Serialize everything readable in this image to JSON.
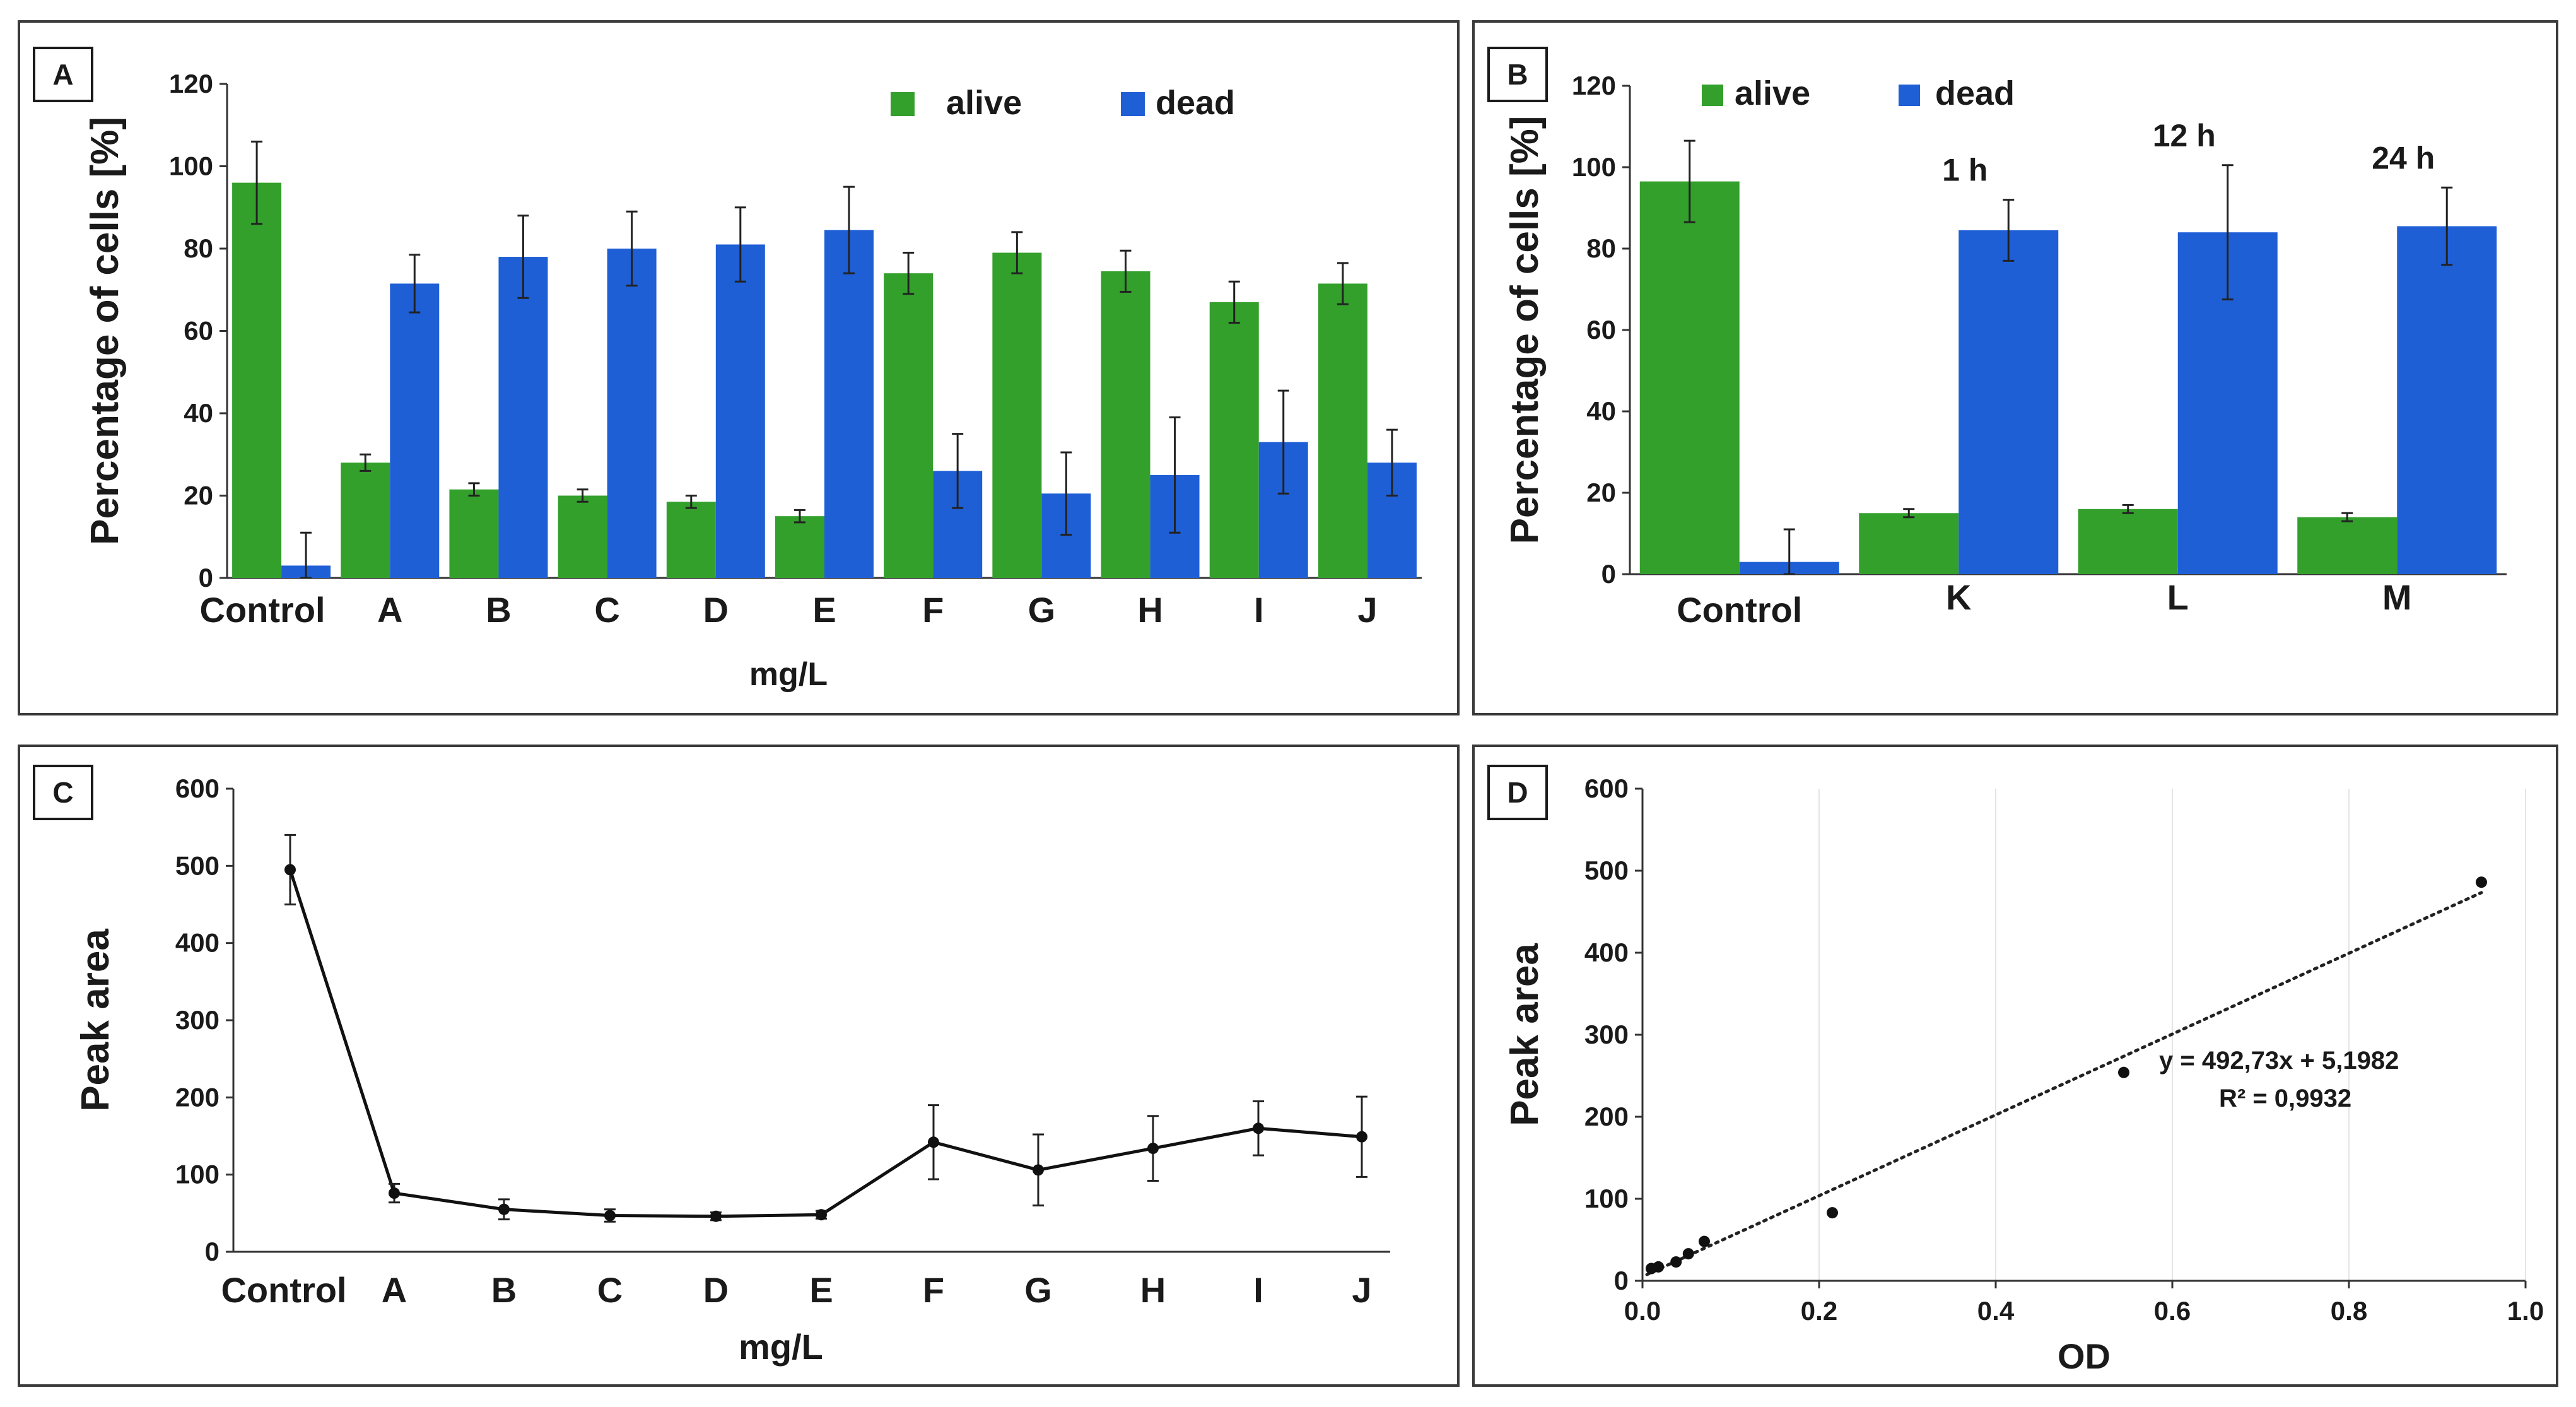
{
  "colors": {
    "alive": "#33a02c",
    "dead": "#1f5fd6",
    "line": "#111111"
  },
  "panels": [
    {
      "id": "A",
      "label": "A",
      "legend": [
        "alive",
        "dead"
      ],
      "xlabel": "mg/L",
      "ylabel": "Percentage of cells  [%]",
      "yticks": [
        "0",
        "20",
        "40",
        "60",
        "80",
        "100",
        "120"
      ]
    },
    {
      "id": "B",
      "label": "B",
      "legend": [
        "alive",
        "dead"
      ],
      "xlabel": "",
      "ylabel": "Percentage of cells [%]",
      "yticks": [
        "0",
        "20",
        "40",
        "60",
        "80",
        "100",
        "120"
      ],
      "annotations": [
        "1 h",
        "12 h",
        "24 h"
      ]
    },
    {
      "id": "C",
      "label": "C",
      "xlabel": "mg/L",
      "ylabel": "Peak area",
      "yticks": [
        "0",
        "100",
        "200",
        "300",
        "400",
        "500",
        "600"
      ]
    },
    {
      "id": "D",
      "label": "D",
      "xlabel": "OD",
      "ylabel": "Peak area",
      "yticks": [
        "0",
        "100",
        "200",
        "300",
        "400",
        "500",
        "600"
      ],
      "xticks": [
        "0.0",
        "0.2",
        "0.4",
        "0.6",
        "0.8",
        "1.0"
      ],
      "equation": "y = 492,73x + 5,1982",
      "r2": "R² = 0,9932"
    }
  ],
  "chart_data": [
    {
      "panel": "A",
      "type": "bar",
      "categories": [
        "Control",
        "A",
        "B",
        "C",
        "D",
        "E",
        "F",
        "G",
        "H",
        "I",
        "J"
      ],
      "series": [
        {
          "name": "alive",
          "values": [
            96,
            28,
            21.5,
            20,
            18.5,
            15,
            74,
            79,
            74.5,
            67,
            71.5
          ],
          "errors": [
            10,
            2,
            1.5,
            1.5,
            1.5,
            1.5,
            5,
            5,
            5,
            5,
            5
          ]
        },
        {
          "name": "dead",
          "values": [
            3,
            71.5,
            78,
            80,
            81,
            84.5,
            26,
            20.5,
            25,
            33,
            28
          ],
          "errors": [
            8,
            7,
            10,
            9,
            9,
            10.5,
            9,
            10,
            14,
            12.5,
            8
          ]
        }
      ],
      "xlabel": "mg/L",
      "ylabel": "Percentage of cells  [%]",
      "ylim": [
        0,
        120
      ],
      "legend": "top-right"
    },
    {
      "panel": "B",
      "type": "bar",
      "categories": [
        "Control",
        "K",
        "L",
        "M"
      ],
      "series": [
        {
          "name": "alive",
          "values": [
            96.5,
            15,
            16,
            14
          ],
          "errors": [
            10,
            1,
            1,
            1
          ]
        },
        {
          "name": "dead",
          "values": [
            3,
            84.5,
            84,
            85.5
          ],
          "errors": [
            8,
            7.5,
            16.5,
            9.5
          ]
        }
      ],
      "annotations": [
        "1 h",
        "12 h",
        "24 h"
      ],
      "xlabel": "",
      "ylabel": "Percentage of cells [%]",
      "ylim": [
        0,
        120
      ],
      "legend": "top-left"
    },
    {
      "panel": "C",
      "type": "line",
      "categories": [
        "Control",
        "A",
        "B",
        "C",
        "D",
        "E",
        "F",
        "G",
        "H",
        "I",
        "J"
      ],
      "values": [
        495,
        76,
        55,
        47,
        46,
        48,
        142,
        106,
        134,
        160,
        149
      ],
      "errors": [
        45,
        12,
        13,
        8,
        5,
        5,
        48,
        46,
        42,
        35,
        52
      ],
      "xlabel": "mg/L",
      "ylabel": "Peak area",
      "ylim": [
        0,
        600
      ]
    },
    {
      "panel": "D",
      "type": "scatter",
      "x": [
        0.01,
        0.018,
        0.038,
        0.052,
        0.07,
        0.215,
        0.545,
        0.95
      ],
      "y": [
        15,
        17,
        23,
        33,
        48,
        83,
        254,
        486
      ],
      "trendline": {
        "slope": 492.73,
        "intercept": 5.1982,
        "r2": 0.9932
      },
      "equation": "y = 492,73x + 5,1982",
      "r2_label": "R² = 0,9932",
      "xlabel": "OD",
      "ylabel": "Peak area",
      "xlim": [
        0,
        1.0
      ],
      "ylim": [
        0,
        600
      ]
    }
  ]
}
